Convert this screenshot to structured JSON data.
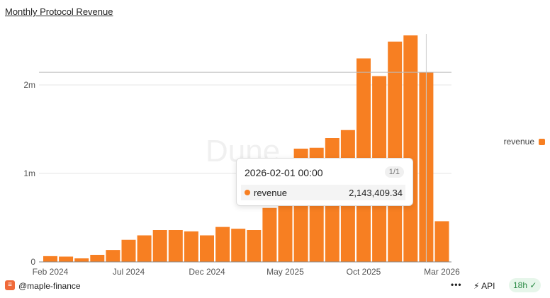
{
  "title": "Monthly Protocol Revenue",
  "chart_data": {
    "type": "bar",
    "title": "Monthly Protocol Revenue",
    "categories": [
      "2024-02",
      "2024-03",
      "2024-04",
      "2024-05",
      "2024-06",
      "2024-07",
      "2024-08",
      "2024-09",
      "2024-10",
      "2024-11",
      "2024-12",
      "2025-01",
      "2025-02",
      "2025-03",
      "2025-04",
      "2025-05",
      "2025-06",
      "2025-07",
      "2025-08",
      "2025-09",
      "2025-10",
      "2025-11",
      "2025-12",
      "2026-01",
      "2026-02",
      "2026-03"
    ],
    "series": [
      {
        "name": "revenue",
        "color": "#f77f22",
        "values": [
          65000,
          60000,
          40000,
          80000,
          135000,
          250000,
          300000,
          360000,
          360000,
          345000,
          300000,
          395000,
          375000,
          360000,
          610000,
          900000,
          1280000,
          1290000,
          1400000,
          1490000,
          2300000,
          2100000,
          2490000,
          2560000,
          2143409.34,
          460000
        ]
      }
    ],
    "x_ticks": [
      {
        "index": 0,
        "label": "Feb 2024"
      },
      {
        "index": 5,
        "label": "Jul 2024"
      },
      {
        "index": 10,
        "label": "Dec 2024"
      },
      {
        "index": 15,
        "label": "May 2025"
      },
      {
        "index": 20,
        "label": "Oct 2025"
      },
      {
        "index": 25,
        "label": "Mar 2026"
      }
    ],
    "y_ticks": [
      {
        "value": 0,
        "label": "0"
      },
      {
        "value": 1000000,
        "label": "1m"
      },
      {
        "value": 2000000,
        "label": "2m"
      }
    ],
    "ylim": [
      0,
      2600000
    ],
    "legend": {
      "label": "revenue",
      "position": "right"
    },
    "hover_index": 24
  },
  "tooltip": {
    "date": "2026-02-01 00:00",
    "page": "1/1",
    "series": "revenue",
    "value": "2,143,409.34"
  },
  "footer": {
    "handle": "@maple-finance",
    "more": "•••",
    "api": "API",
    "badge": "18h"
  }
}
